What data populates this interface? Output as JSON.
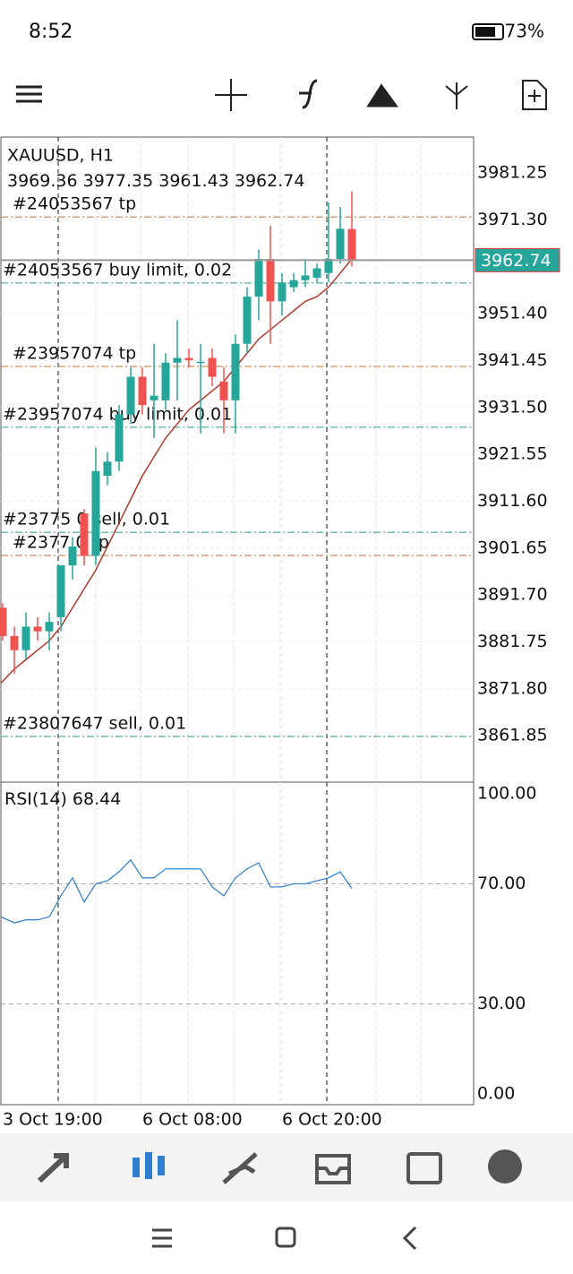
{
  "status_bar": {
    "time": "8:52",
    "battery": "73%"
  },
  "chart_data": {
    "type": "candlestick",
    "title": "XAUUSD, H1",
    "open": [
      3889,
      3883,
      3880,
      3885,
      3884,
      3887,
      3898,
      3909,
      3900,
      3917,
      3920,
      3930,
      3938,
      3933,
      3933,
      3941,
      3942,
      3941,
      3942,
      3937,
      3933,
      3945,
      3955,
      3963,
      3954,
      3957,
      3958.5,
      3959,
      3960,
      3963,
      3969.36
    ],
    "high": [
      3890,
      3885,
      3888,
      3887,
      3888,
      3898,
      3904,
      3910,
      3923,
      3922,
      3932,
      3940,
      3940,
      3945,
      3943,
      3950,
      3944,
      3945,
      3944,
      3940,
      3947,
      3957,
      3965,
      3970,
      3960,
      3960,
      3963,
      3962,
      3975,
      3974,
      3977.35
    ],
    "low": [
      3882,
      3875,
      3878,
      3882,
      3880,
      3884,
      3895,
      3898,
      3898,
      3915,
      3918,
      3928,
      3930,
      3925,
      3931,
      3933,
      3940,
      3926,
      3936,
      3926,
      3926,
      3943,
      3950,
      3945,
      3951,
      3956,
      3957,
      3958,
      3958,
      3962,
      3961.43
    ],
    "close": [
      3883,
      3880,
      3885,
      3884,
      3886,
      3898,
      3902,
      3900,
      3918,
      3920,
      3930,
      3938,
      3932,
      3934,
      3941,
      3942,
      3941.5,
      3941.2,
      3938,
      3933,
      3945,
      3955,
      3963,
      3954,
      3958,
      3958.5,
      3959.5,
      3961,
      3963,
      3969.4,
      3962.74
    ],
    "ma": [
      3873,
      3876,
      3878,
      3880,
      3882,
      3885,
      3889,
      3893,
      3897,
      3902,
      3907,
      3912,
      3917,
      3921,
      3925,
      3928,
      3931,
      3933,
      3935,
      3937,
      3940,
      3943,
      3946,
      3948,
      3950,
      3952,
      3954,
      3955,
      3957,
      3960,
      3963
    ],
    "up_color": "#26a69a",
    "down_color": "#ef5350",
    "ma_color": "#b03a2e",
    "ylim": [
      3852.2,
      3988.85
    ],
    "yticks": [
      3981.25,
      {
        "value": 3971.3,
        "label": "3971.30"
      },
      3961.35,
      {
        "value": 3951.4,
        "label": "3951.40"
      },
      3941.45,
      {
        "value": 3931.5,
        "label": "3931.50"
      },
      3921.55,
      {
        "value": 3911.6,
        "label": "3911.60"
      },
      3901.65,
      {
        "value": 3891.7,
        "label": "3891.70"
      },
      3881.75,
      {
        "value": 3871.8,
        "label": "3871.80"
      },
      3861.85
    ],
    "time_labels": [
      {
        "index": 0,
        "label": "3 Oct 19:00"
      },
      {
        "index": 12,
        "label": "6 Oct 08:00"
      },
      {
        "index": 24,
        "label": "6 Oct 20:00"
      }
    ],
    "orders": [
      {
        "label": "#24053567 tp",
        "price": 3971.9,
        "color": "#c0703a"
      },
      {
        "label": "#24053567 buy limit, 0.02",
        "price": 3957.9,
        "color": "#2a9d8f"
      },
      {
        "label": "#23957074 tp",
        "price": 3940.2,
        "color": "#c0703a"
      },
      {
        "label": "#23957074 buy limit, 0.01",
        "price": 3927.3,
        "color": "#2a9d8f"
      },
      {
        "label": "#23775  0 sell, 0.01",
        "price": 3905,
        "color": "#2a9d8f"
      },
      {
        "label": "#2377   0 tp",
        "price": 3900.1,
        "color": "#c0703a"
      },
      {
        "label": "#23807647 sell, 0.01",
        "price": 3861.7,
        "color": "#2a9d8f"
      }
    ],
    "rsi": {
      "label": "RSI(14)",
      "color": "#3a86c8",
      "values": [
        59,
        57,
        58,
        58,
        59,
        66,
        72,
        64,
        70,
        71,
        74,
        78,
        72,
        72,
        75,
        75,
        75,
        75,
        69,
        66,
        72,
        75,
        77,
        69,
        69,
        70,
        70,
        71,
        72,
        74,
        68.44
      ],
      "ylim": [
        -3.6,
        103.9
      ],
      "yticks": [
        {
          "value": 100,
          "label": "100.00"
        },
        {
          "value": 70,
          "label": "70.00"
        },
        {
          "value": 30,
          "label": "30.00"
        },
        {
          "value": 0,
          "label": "0.00"
        }
      ]
    }
  }
}
